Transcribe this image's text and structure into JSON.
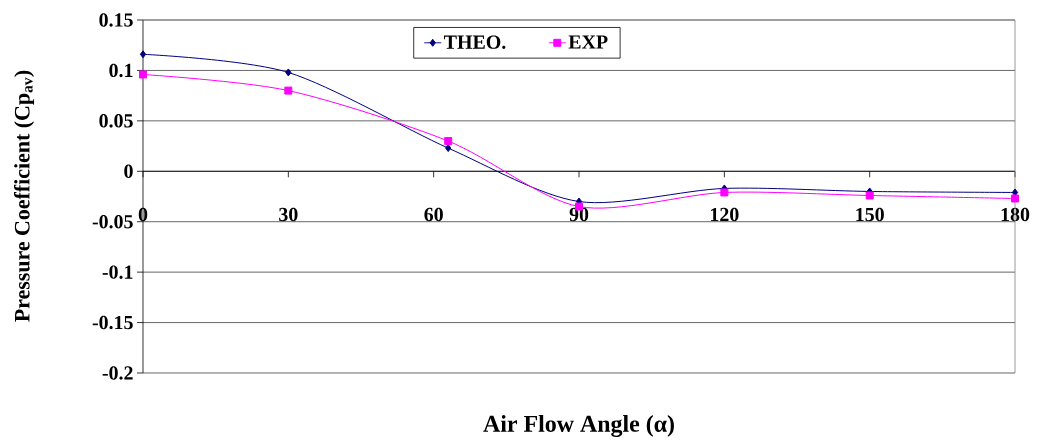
{
  "chart_data": {
    "type": "line",
    "xlabel": "Air Flow Angle (α)",
    "ylabel": "Pressure Coefficient (Cp$_{av}$)",
    "x": [
      0,
      30,
      63,
      90,
      120,
      150,
      180
    ],
    "series": [
      {
        "name": "THEO.",
        "color": "#000080",
        "marker": "diamond",
        "values": [
          0.116,
          0.098,
          0.023,
          -0.03,
          -0.017,
          -0.02,
          -0.021
        ]
      },
      {
        "name": "EXP",
        "color": "#ff00ff",
        "marker": "square",
        "values": [
          0.096,
          0.08,
          0.03,
          -0.035,
          -0.021,
          -0.024,
          -0.027
        ]
      }
    ],
    "xlim": [
      0,
      180
    ],
    "ylim": [
      -0.2,
      0.15
    ],
    "xticks": [
      0,
      30,
      60,
      90,
      120,
      150,
      180
    ],
    "yticks": [
      -0.2,
      -0.15,
      -0.1,
      -0.05,
      0,
      0.05,
      0.1,
      0.15
    ],
    "grid": "y",
    "legend": "top",
    "line_style": "solid"
  }
}
